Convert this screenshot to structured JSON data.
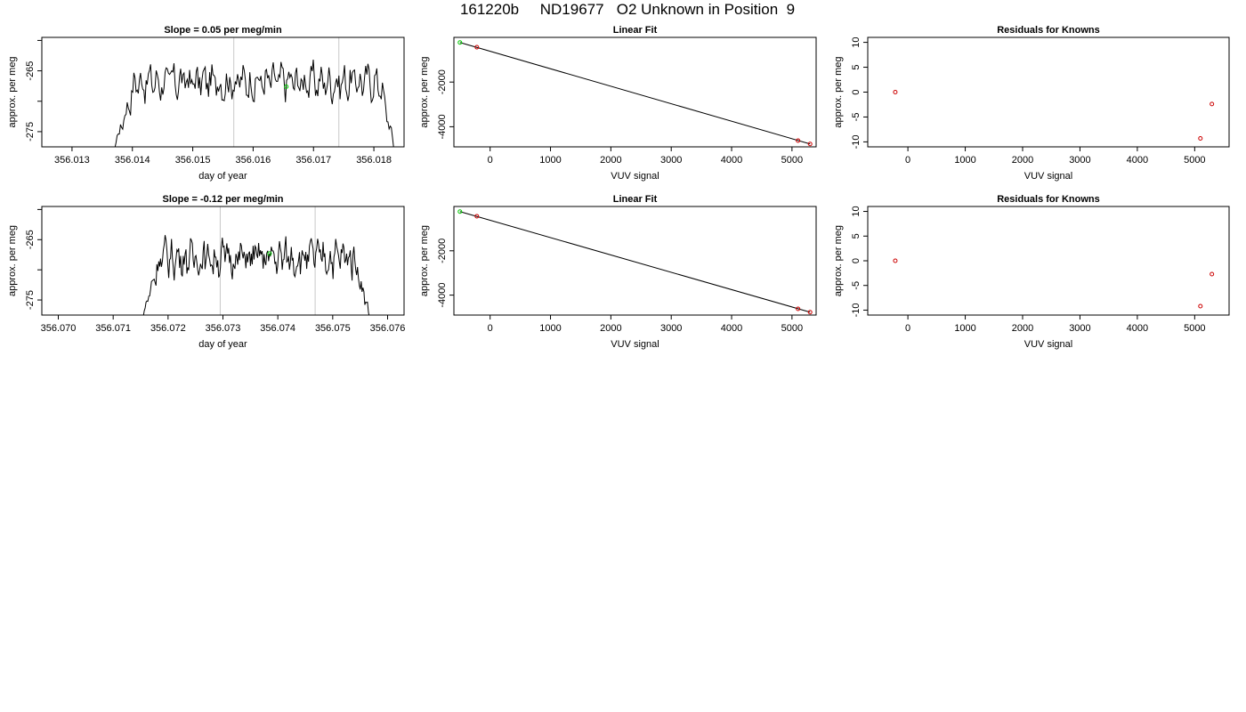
{
  "page": {
    "title": "161220b     ND19677   O2 Unknown in Position  9"
  },
  "chart_data": [
    {
      "type": "line",
      "title": "Slope =  0.05  per meg/min",
      "xlabel": "day of year",
      "ylabel": "approx. per meg",
      "xlim": [
        356.0125,
        356.0185
      ],
      "ylim": [
        -277.5,
        -259.5
      ],
      "xticks": [
        "356.013",
        "356.014",
        "356.015",
        "356.016",
        "356.017",
        "356.018"
      ],
      "yticks": [
        "-275",
        "-265"
      ],
      "yticks_minor": [
        -270,
        -260
      ],
      "trace": {
        "x_start": 356.0136,
        "x_end": 356.0184,
        "level": -266.8,
        "rise": [
          356.0136,
          356.01405
        ],
        "fall": [
          356.0181,
          356.0184
        ]
      },
      "vlines": [
        356.01568,
        356.01742
      ],
      "highlight_point": {
        "x": 356.01655,
        "y": -267.6
      },
      "grid": false,
      "legend": "none"
    },
    {
      "type": "scatter",
      "title": "Linear Fit",
      "xlabel": "VUV signal",
      "ylabel": "approx. per meg",
      "xlim": [
        -600,
        5400
      ],
      "ylim": [
        -4900,
        0
      ],
      "xticks": [
        "0",
        "1000",
        "2000",
        "3000",
        "4000",
        "5000"
      ],
      "yticks": [
        "-4000",
        "-2000"
      ],
      "points": [
        {
          "x": -500,
          "y": -230,
          "color": "#00cc00"
        },
        {
          "x": -220,
          "y": -440,
          "color": "#cc0000"
        },
        {
          "x": 5100,
          "y": -4620,
          "color": "#cc0000"
        },
        {
          "x": 5300,
          "y": -4770,
          "color": "#cc0000"
        }
      ],
      "fit_line": [
        {
          "x": -500,
          "y": -230
        },
        {
          "x": 5300,
          "y": -4770
        }
      ],
      "grid": false,
      "legend": "none"
    },
    {
      "type": "scatter",
      "title": "Residuals for Knowns",
      "xlabel": "VUV signal",
      "ylabel": "approx. per meg",
      "xlim": [
        -700,
        5600
      ],
      "ylim": [
        -11,
        11
      ],
      "xticks": [
        "0",
        "1000",
        "2000",
        "3000",
        "4000",
        "5000"
      ],
      "yticks": [
        "-10",
        "-5",
        "0",
        "5",
        "10"
      ],
      "points": [
        {
          "x": -220,
          "y": 0,
          "color": "#cc0000"
        },
        {
          "x": 5100,
          "y": -9.3,
          "color": "#cc0000"
        },
        {
          "x": 5300,
          "y": -2.4,
          "color": "#cc0000"
        }
      ],
      "grid": false,
      "legend": "none"
    },
    {
      "type": "line",
      "title": "Slope =  -0.12  per meg/min",
      "xlabel": "day of year",
      "ylabel": "approx. per meg",
      "xlim": [
        356.0697,
        356.0763
      ],
      "ylim": [
        -277.5,
        -259.5
      ],
      "xticks": [
        "356.070",
        "356.071",
        "356.072",
        "356.073",
        "356.074",
        "356.075",
        "356.076"
      ],
      "yticks": [
        "-275",
        "-265"
      ],
      "yticks_minor": [
        -270,
        -260
      ],
      "trace": {
        "x_start": 356.07145,
        "x_end": 356.07575,
        "level": -268.0,
        "rise": [
          356.07145,
          356.07185
        ],
        "fall": [
          356.0754,
          356.07575
        ]
      },
      "vlines": [
        356.07295,
        356.07468
      ],
      "highlight_point": {
        "x": 356.07385,
        "y": -267.3
      },
      "grid": false,
      "legend": "none"
    },
    {
      "type": "scatter",
      "title": "Linear Fit",
      "xlabel": "VUV signal",
      "ylabel": "approx. per meg",
      "xlim": [
        -600,
        5400
      ],
      "ylim": [
        -4900,
        0
      ],
      "xticks": [
        "0",
        "1000",
        "2000",
        "3000",
        "4000",
        "5000"
      ],
      "yticks": [
        "-4000",
        "-2000"
      ],
      "points": [
        {
          "x": -500,
          "y": -230,
          "color": "#00cc00"
        },
        {
          "x": -220,
          "y": -440,
          "color": "#cc0000"
        },
        {
          "x": 5100,
          "y": -4620,
          "color": "#cc0000"
        },
        {
          "x": 5300,
          "y": -4770,
          "color": "#cc0000"
        }
      ],
      "fit_line": [
        {
          "x": -500,
          "y": -230
        },
        {
          "x": 5300,
          "y": -4770
        }
      ],
      "grid": false,
      "legend": "none"
    },
    {
      "type": "scatter",
      "title": "Residuals for Knowns",
      "xlabel": "VUV signal",
      "ylabel": "approx. per meg",
      "xlim": [
        -700,
        5600
      ],
      "ylim": [
        -11,
        11
      ],
      "xticks": [
        "0",
        "1000",
        "2000",
        "3000",
        "4000",
        "5000"
      ],
      "yticks": [
        "-10",
        "-5",
        "0",
        "5",
        "10"
      ],
      "points": [
        {
          "x": -220,
          "y": 0,
          "color": "#cc0000"
        },
        {
          "x": 5100,
          "y": -9.2,
          "color": "#cc0000"
        },
        {
          "x": 5300,
          "y": -2.7,
          "color": "#cc0000"
        }
      ],
      "grid": false,
      "legend": "none"
    }
  ]
}
